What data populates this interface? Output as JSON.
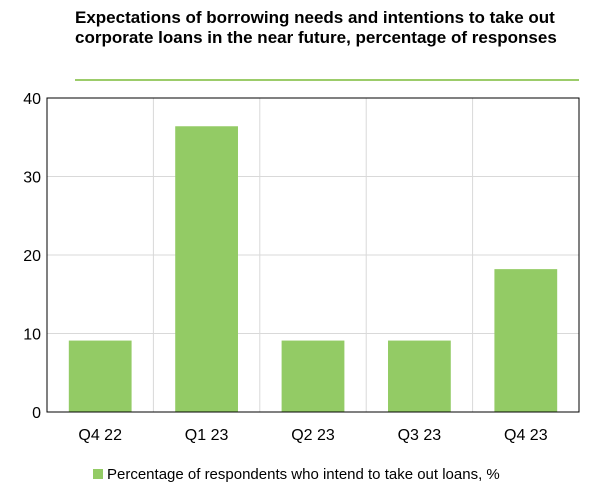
{
  "chart_data": {
    "type": "bar",
    "title": "Expectations of borrowing needs and intentions to take out corporate loans in the near future, percentage of responses",
    "categories": [
      "Q4 22",
      "Q1 23",
      "Q2 23",
      "Q3 23",
      "Q4 23"
    ],
    "series": [
      {
        "name": "Percentage of respondents who intend to take out loans, %",
        "values": [
          9.1,
          36.4,
          9.1,
          9.1,
          18.2
        ],
        "color": "#93cb65"
      }
    ],
    "ylim": [
      0,
      40
    ],
    "yticks": [
      "0",
      "10",
      "20",
      "30",
      "40"
    ],
    "grid": true,
    "legend_position": "bottom"
  }
}
